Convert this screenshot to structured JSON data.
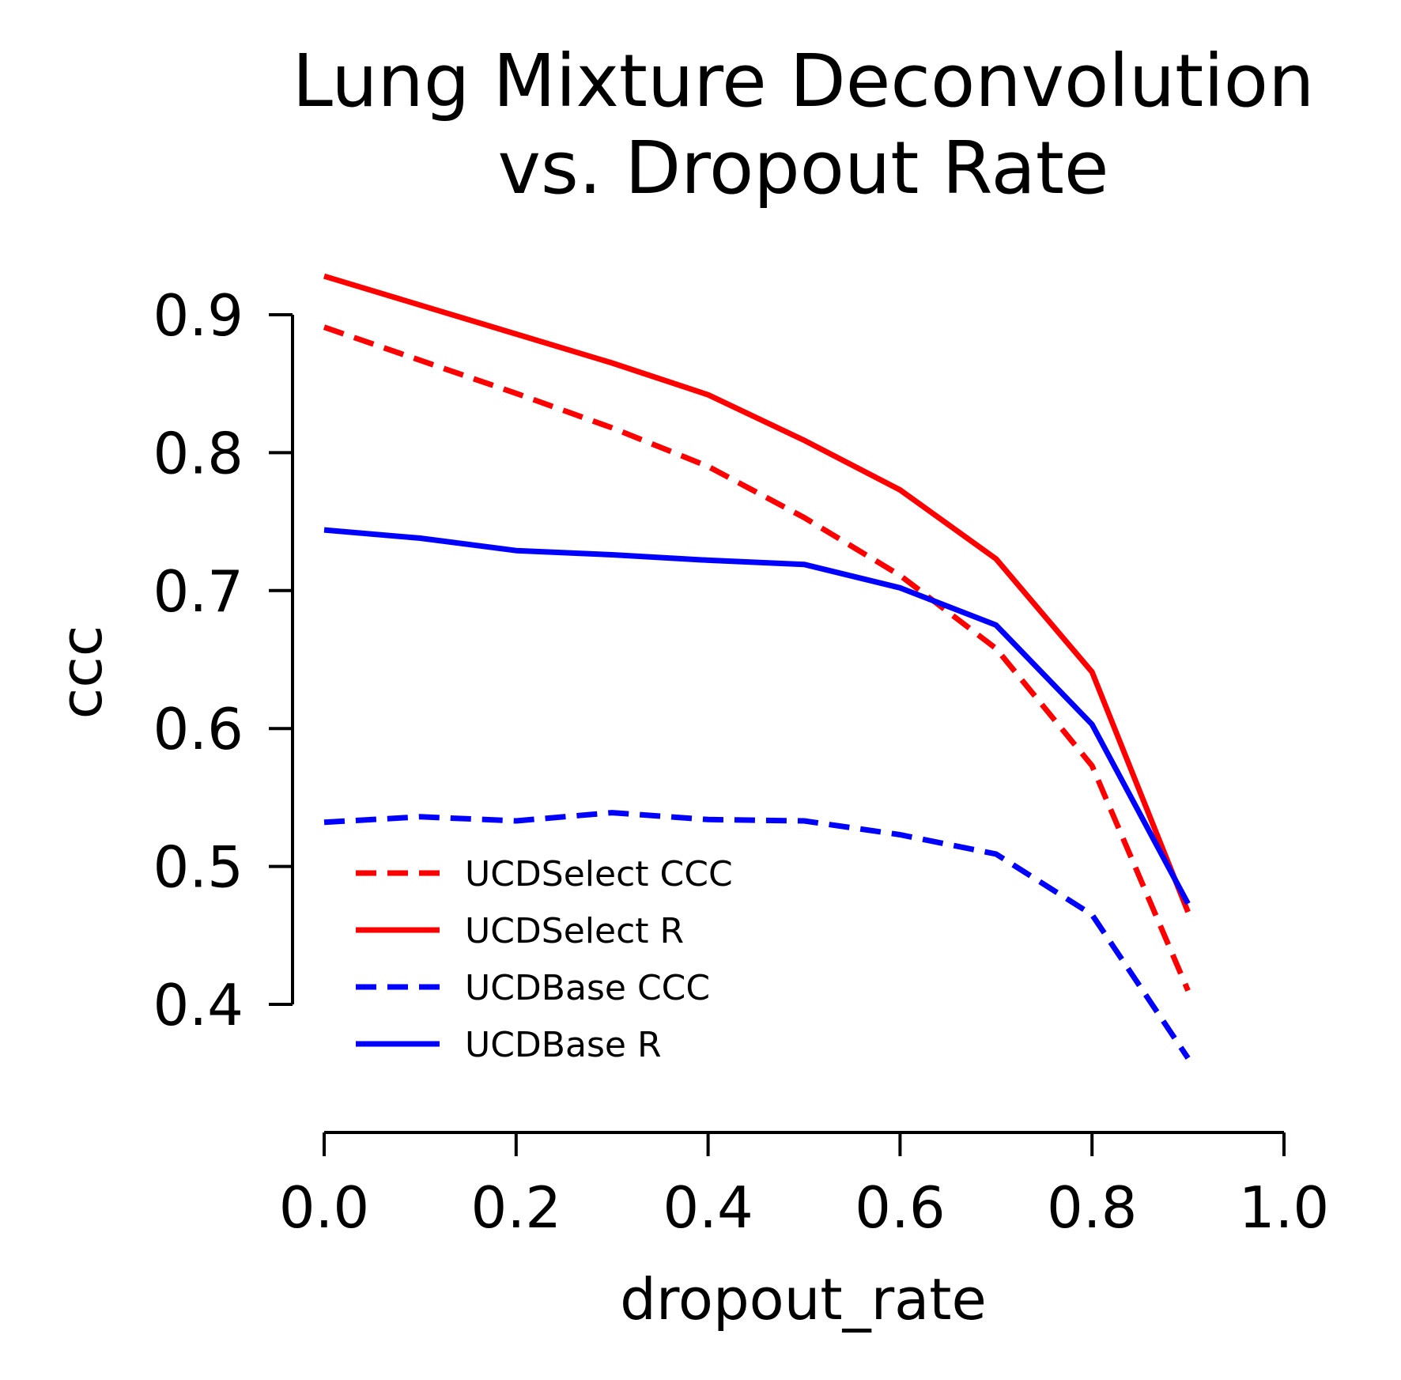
{
  "chart_data": {
    "type": "line",
    "title": [
      "Lung Mixture Deconvolution",
      "vs. Dropout Rate"
    ],
    "xlabel": "dropout_rate",
    "ylabel": "ccc",
    "xlim": [
      0.0,
      1.0
    ],
    "ylim": [
      0.4,
      0.9
    ],
    "xticks": [
      0.0,
      0.2,
      0.4,
      0.6,
      0.8,
      1.0
    ],
    "xtick_labels": [
      "0.0",
      "0.2",
      "0.4",
      "0.6",
      "0.8",
      "1.0"
    ],
    "yticks": [
      0.4,
      0.5,
      0.6,
      0.7,
      0.8,
      0.9
    ],
    "ytick_labels": [
      "0.4",
      "0.5",
      "0.6",
      "0.7",
      "0.8",
      "0.9"
    ],
    "grid": false,
    "legend_position": "lower-left",
    "x": [
      0.0,
      0.1,
      0.2,
      0.3,
      0.4,
      0.5,
      0.6,
      0.7,
      0.8,
      0.9
    ],
    "series": [
      {
        "name": "UCDSelect CCC",
        "color": "#ff0000",
        "style": "dashed",
        "values": [
          0.891,
          0.867,
          0.843,
          0.818,
          0.79,
          0.753,
          0.711,
          0.658,
          0.573,
          0.41
        ]
      },
      {
        "name": "UCDSelect R",
        "color": "#ff0000",
        "style": "solid",
        "values": [
          0.928,
          0.907,
          0.886,
          0.865,
          0.842,
          0.809,
          0.773,
          0.723,
          0.641,
          0.467
        ]
      },
      {
        "name": "UCDBase CCC",
        "color": "#0000ff",
        "style": "dashed",
        "values": [
          0.532,
          0.536,
          0.533,
          0.539,
          0.534,
          0.533,
          0.523,
          0.509,
          0.465,
          0.361
        ]
      },
      {
        "name": "UCDBase R",
        "color": "#0000ff",
        "style": "solid",
        "values": [
          0.744,
          0.738,
          0.729,
          0.726,
          0.722,
          0.719,
          0.702,
          0.675,
          0.603,
          0.473
        ]
      }
    ]
  }
}
